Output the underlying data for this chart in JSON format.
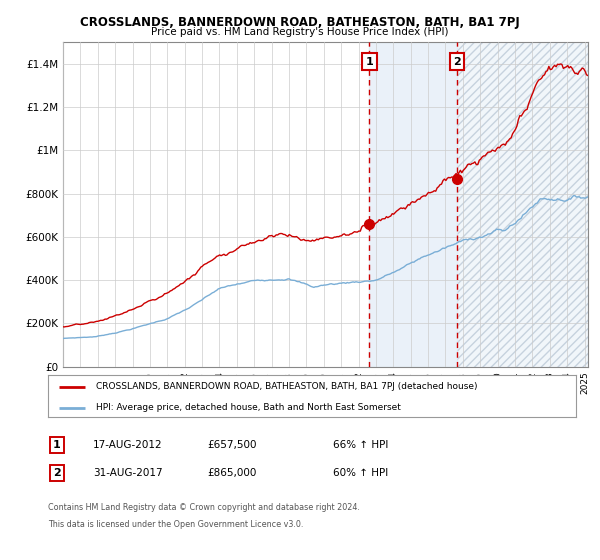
{
  "title": "CROSSLANDS, BANNERDOWN ROAD, BATHEASTON, BATH, BA1 7PJ",
  "subtitle": "Price paid vs. HM Land Registry's House Price Index (HPI)",
  "sale1_date": "17-AUG-2012",
  "sale1_price": 657500,
  "sale1_hpi": "66% ↑ HPI",
  "sale1_label": "1",
  "sale2_date": "31-AUG-2017",
  "sale2_price": 865000,
  "sale2_hpi": "60% ↑ HPI",
  "sale2_label": "2",
  "legend_line1": "CROSSLANDS, BANNERDOWN ROAD, BATHEASTON, BATH, BA1 7PJ (detached house)",
  "legend_line2": "HPI: Average price, detached house, Bath and North East Somerset",
  "footer1": "Contains HM Land Registry data © Crown copyright and database right 2024.",
  "footer2": "This data is licensed under the Open Government Licence v3.0.",
  "red_color": "#cc0000",
  "blue_color": "#7aaed6",
  "highlight_color": "#dce9f5",
  "background_color": "#ffffff",
  "grid_color": "#cccccc",
  "ylim": [
    0,
    1500000
  ],
  "ylabel_ticks": [
    0,
    200000,
    400000,
    600000,
    800000,
    1000000,
    1200000,
    1400000
  ],
  "ylabel_labels": [
    "£0",
    "£200K",
    "£400K",
    "£600K",
    "£800K",
    "£1M",
    "£1.2M",
    "£1.4M"
  ],
  "sale1_x": 2012.625,
  "sale2_x": 2017.666,
  "xmin": 1995.0,
  "xmax": 2025.2
}
